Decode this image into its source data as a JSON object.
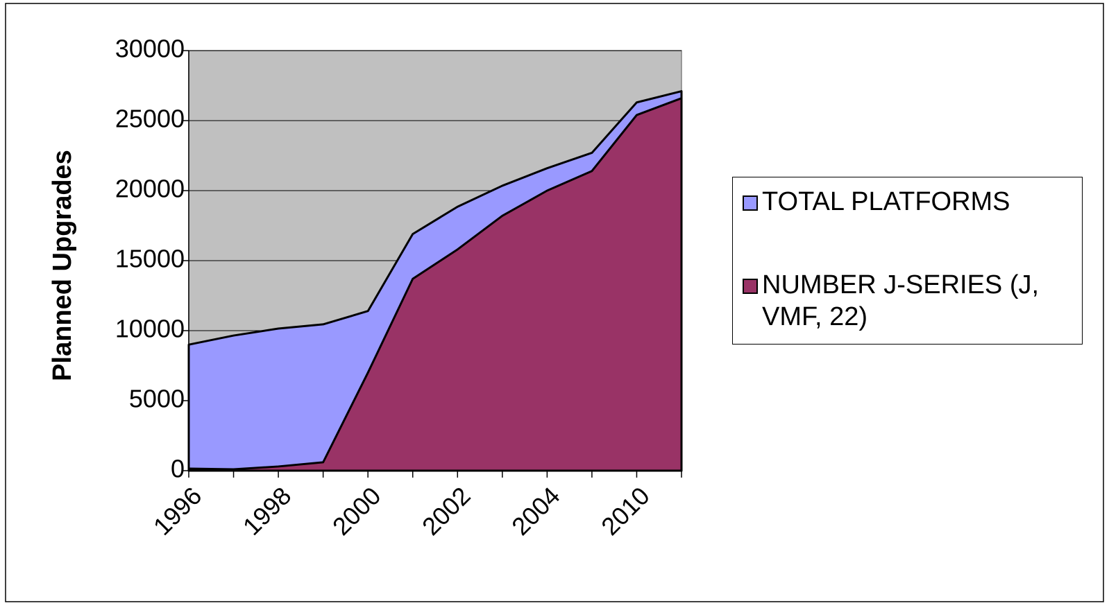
{
  "chart_data": {
    "type": "area",
    "categories": [
      "1996",
      null,
      "1998",
      null,
      "2000",
      null,
      "2002",
      null,
      "2004",
      null,
      "2010",
      null
    ],
    "series": [
      {
        "name": "TOTAL PLATFORMS",
        "color": "#9999ff",
        "values": [
          9000,
          9650,
          10150,
          10450,
          11400,
          16900,
          18850,
          20350,
          21600,
          22700,
          26300,
          27100
        ]
      },
      {
        "name": "NUMBER J-SERIES (J, VMF, 22)",
        "color": "#993366",
        "values": [
          150,
          100,
          300,
          600,
          7000,
          13700,
          15800,
          18200,
          20000,
          21400,
          25400,
          26600
        ]
      }
    ],
    "y_label": "Planned Upgrades",
    "ylim": [
      0,
      30000
    ],
    "yticks": [
      0,
      5000,
      10000,
      15000,
      20000,
      25000,
      30000
    ],
    "grid": true,
    "legend": "right",
    "plot_background": "#c0c0c0"
  }
}
